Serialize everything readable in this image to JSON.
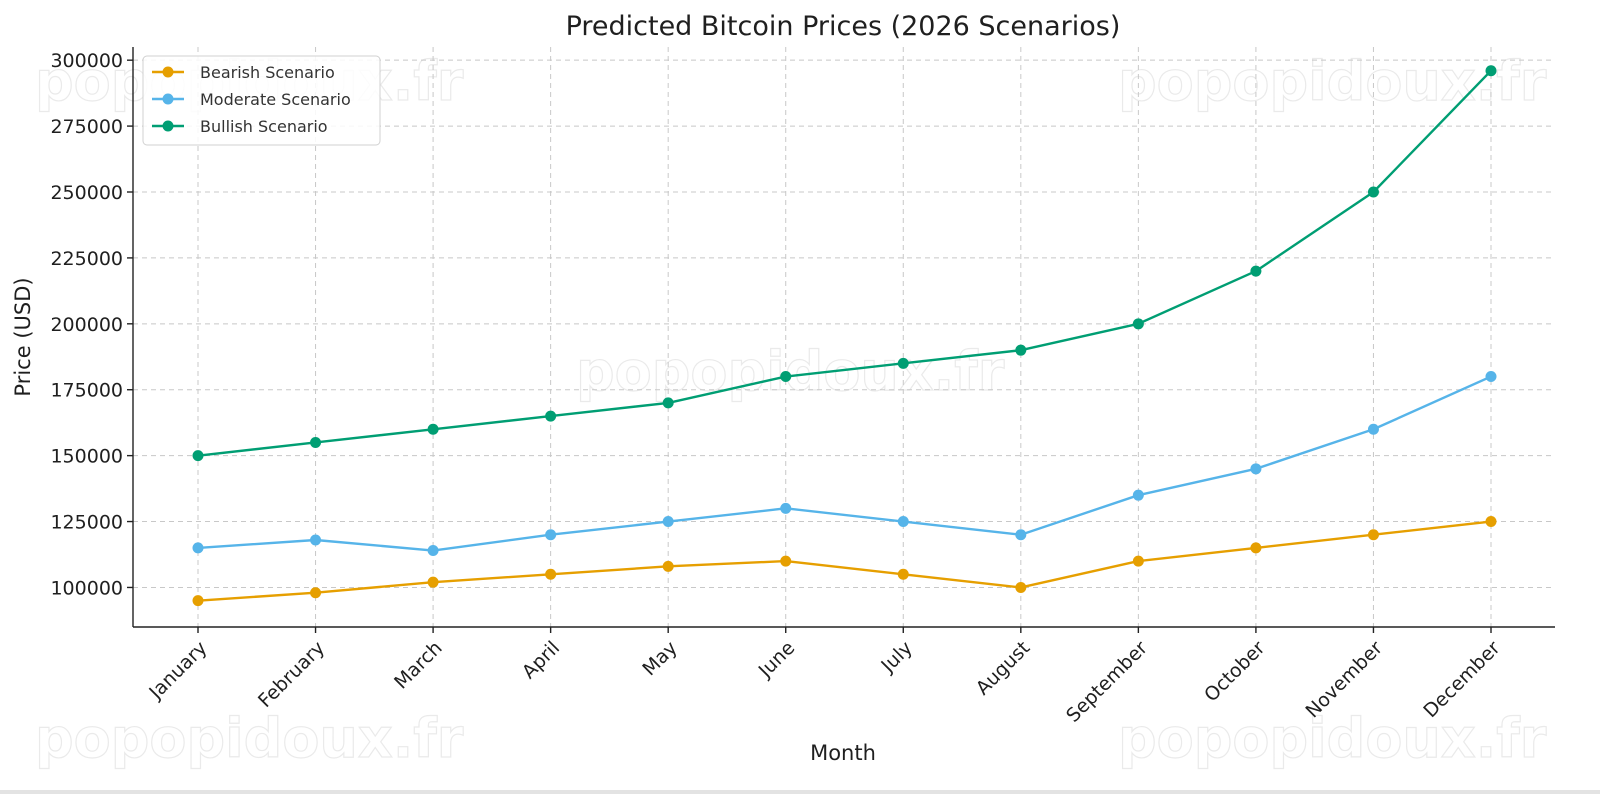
{
  "chart_data": {
    "type": "line",
    "title": "Predicted Bitcoin Prices (2026 Scenarios)",
    "xlabel": "Month",
    "ylabel": "Price (USD)",
    "categories": [
      "January",
      "February",
      "March",
      "April",
      "May",
      "June",
      "July",
      "August",
      "September",
      "October",
      "November",
      "December"
    ],
    "ylim": [
      85000,
      305000
    ],
    "yticks": [
      100000,
      125000,
      150000,
      175000,
      200000,
      225000,
      250000,
      275000,
      300000
    ],
    "ytick_labels": [
      "100000",
      "125000",
      "150000",
      "175000",
      "200000",
      "225000",
      "250000",
      "275000",
      "300000"
    ],
    "grid": true,
    "legend_position": "top-left",
    "series": [
      {
        "name": "Bearish Scenario",
        "color": "#e69f00",
        "marker": "circle",
        "values": [
          95000,
          98000,
          102000,
          105000,
          108000,
          110000,
          105000,
          100000,
          110000,
          115000,
          120000,
          125000
        ]
      },
      {
        "name": "Moderate Scenario",
        "color": "#56b4e9",
        "marker": "circle",
        "values": [
          115000,
          118000,
          114000,
          120000,
          125000,
          130000,
          125000,
          120000,
          135000,
          145000,
          160000,
          180000
        ]
      },
      {
        "name": "Bullish Scenario",
        "color": "#009e73",
        "marker": "circle",
        "values": [
          150000,
          155000,
          160000,
          165000,
          170000,
          180000,
          185000,
          190000,
          200000,
          220000,
          250000,
          296000
        ]
      }
    ]
  },
  "watermark": {
    "text": "popopidoux.fr"
  }
}
